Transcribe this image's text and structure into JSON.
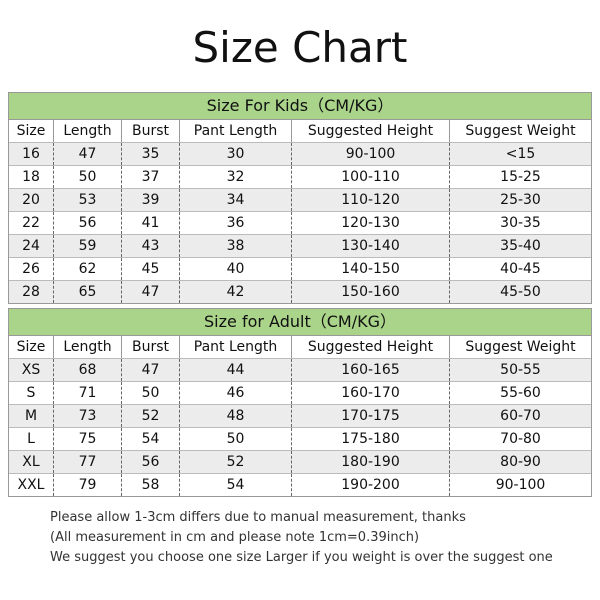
{
  "title": "Size Chart",
  "tables": [
    {
      "title": "Size For Kids（CM/KG）",
      "columns": [
        "Size",
        "Length",
        "Burst",
        "Pant Length",
        "Suggested Height",
        "Suggest Weight"
      ],
      "rows": [
        [
          "16",
          "47",
          "35",
          "30",
          "90-100",
          "<15"
        ],
        [
          "18",
          "50",
          "37",
          "32",
          "100-110",
          "15-25"
        ],
        [
          "20",
          "53",
          "39",
          "34",
          "110-120",
          "25-30"
        ],
        [
          "22",
          "56",
          "41",
          "36",
          "120-130",
          "30-35"
        ],
        [
          "24",
          "59",
          "43",
          "38",
          "130-140",
          "35-40"
        ],
        [
          "26",
          "62",
          "45",
          "40",
          "140-150",
          "40-45"
        ],
        [
          "28",
          "65",
          "47",
          "42",
          "150-160",
          "45-50"
        ]
      ]
    },
    {
      "title": "Size for Adult（CM/KG）",
      "columns": [
        "Size",
        "Length",
        "Burst",
        "Pant Length",
        "Suggested Height",
        "Suggest Weight"
      ],
      "rows": [
        [
          "XS",
          "68",
          "47",
          "44",
          "160-165",
          "50-55"
        ],
        [
          "S",
          "71",
          "50",
          "46",
          "160-170",
          "55-60"
        ],
        [
          "M",
          "73",
          "52",
          "48",
          "170-175",
          "60-70"
        ],
        [
          "L",
          "75",
          "54",
          "50",
          "175-180",
          "70-80"
        ],
        [
          "XL",
          "77",
          "56",
          "52",
          "180-190",
          "80-90"
        ],
        [
          "XXL",
          "79",
          "58",
          "54",
          "190-200",
          "90-100"
        ]
      ]
    }
  ],
  "notes": [
    "Please allow 1-3cm differs due to manual measurement, thanks",
    "(All measurement in cm and please note 1cm=0.39inch)",
    "We suggest you choose one size Larger if you weight is over the suggest one"
  ]
}
